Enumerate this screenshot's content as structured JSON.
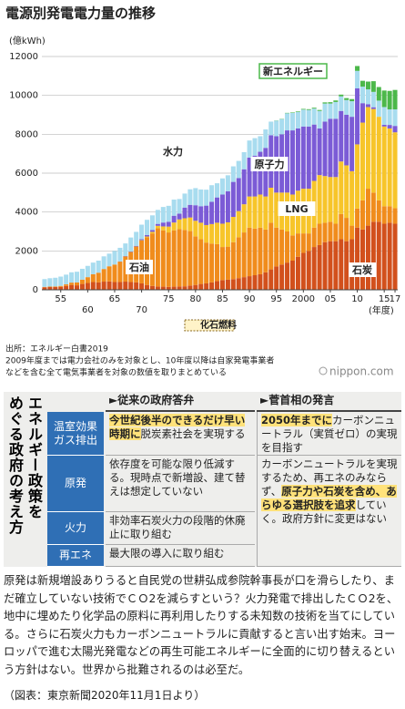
{
  "chart_data": {
    "type": "stacked_bar",
    "title": "電源別発電電力量の推移",
    "y_label": "(億kWh)",
    "x_label": "(年度)",
    "x": [
      1952,
      1953,
      1954,
      1955,
      1956,
      1957,
      1958,
      1959,
      1960,
      1961,
      1962,
      1963,
      1964,
      1965,
      1966,
      1967,
      1968,
      1969,
      1970,
      1971,
      1972,
      1973,
      1974,
      1975,
      1976,
      1977,
      1978,
      1979,
      1980,
      1981,
      1982,
      1983,
      1984,
      1985,
      1986,
      1987,
      1988,
      1989,
      1990,
      1991,
      1992,
      1993,
      1994,
      1995,
      1996,
      1997,
      1998,
      1999,
      2000,
      2001,
      2002,
      2003,
      2004,
      2005,
      2006,
      2007,
      2008,
      2009,
      2010,
      2011,
      2012,
      2013,
      2014,
      2015,
      2016,
      2017
    ],
    "xlim": [
      1951.5,
      2017.5
    ],
    "xticks": [
      {
        "value": 1955,
        "label": "55"
      },
      {
        "value": 1960,
        "label": "60"
      },
      {
        "value": 1965,
        "label": "65"
      },
      {
        "value": 1970,
        "label": "70"
      },
      {
        "value": 1975,
        "label": "75"
      },
      {
        "value": 1980,
        "label": "80"
      },
      {
        "value": 1985,
        "label": "85"
      },
      {
        "value": 1990,
        "label": "90"
      },
      {
        "value": 1995,
        "label": "95"
      },
      2000,
      {
        "value": 2005,
        "label": "05"
      },
      {
        "value": 2010,
        "label": "10"
      },
      {
        "value": 2015,
        "label": "15"
      },
      {
        "value": 2017,
        "label": "17"
      }
    ],
    "ylim": [
      0,
      12000
    ],
    "yticks": [
      0,
      2000,
      4000,
      6000,
      8000,
      10000,
      12000
    ],
    "grid": true,
    "series": [
      {
        "name": "石炭",
        "color": "#d2501c",
        "values": [
          130,
          140,
          140,
          150,
          200,
          250,
          230,
          300,
          350,
          400,
          380,
          420,
          430,
          400,
          400,
          420,
          400,
          380,
          330,
          250,
          200,
          170,
          160,
          150,
          160,
          170,
          180,
          220,
          250,
          300,
          330,
          380,
          450,
          500,
          520,
          550,
          600,
          650,
          700,
          750,
          800,
          900,
          1050,
          1200,
          1300,
          1400,
          1500,
          1700,
          1900,
          2000,
          2200,
          2300,
          2450,
          2500,
          2500,
          2600,
          2500,
          2600,
          3200,
          3100,
          3300,
          3500,
          3500,
          3400,
          3450,
          3400
        ]
      },
      {
        "name": "石油",
        "color": "#f08c1c",
        "values": [
          20,
          25,
          30,
          50,
          80,
          120,
          150,
          220,
          300,
          400,
          500,
          650,
          780,
          900,
          1050,
          1300,
          1550,
          1850,
          2200,
          2450,
          2700,
          3000,
          2900,
          2800,
          2900,
          2950,
          2900,
          2800,
          2500,
          2300,
          2100,
          2000,
          1900,
          1700,
          1700,
          1900,
          2100,
          2300,
          2500,
          2400,
          2400,
          2200,
          2400,
          2000,
          1800,
          1600,
          1300,
          1200,
          1000,
          900,
          1000,
          1100,
          1000,
          1000,
          900,
          1300,
          1200,
          700,
          980,
          1500,
          1900,
          1500,
          1100,
          900,
          850,
          800
        ]
      },
      {
        "name": "LNG",
        "color": "#f7c52a",
        "values": [
          0,
          0,
          0,
          0,
          0,
          0,
          0,
          0,
          0,
          0,
          0,
          0,
          0,
          0,
          0,
          0,
          0,
          0,
          20,
          40,
          80,
          120,
          200,
          300,
          400,
          500,
          600,
          700,
          800,
          850,
          900,
          1000,
          1100,
          1200,
          1250,
          1300,
          1350,
          1450,
          1600,
          1650,
          1700,
          1700,
          1800,
          1800,
          1900,
          2000,
          2100,
          2200,
          2300,
          2300,
          2400,
          2500,
          2400,
          2300,
          2400,
          2700,
          2700,
          2800,
          3300,
          4000,
          4200,
          4300,
          4300,
          4100,
          4000,
          3900
        ]
      },
      {
        "name": "原子力",
        "color": "#7b5bd6",
        "values": [
          0,
          0,
          0,
          0,
          0,
          0,
          0,
          0,
          0,
          0,
          0,
          0,
          0,
          0,
          10,
          15,
          20,
          30,
          50,
          80,
          90,
          100,
          200,
          250,
          350,
          300,
          550,
          650,
          800,
          850,
          1000,
          1150,
          1300,
          1500,
          1600,
          1800,
          1700,
          1800,
          2000,
          2100,
          2200,
          2500,
          2700,
          2900,
          3000,
          3200,
          3300,
          3200,
          3200,
          3200,
          2900,
          2400,
          2800,
          3000,
          3000,
          2600,
          2600,
          2800,
          2880,
          1000,
          150,
          90,
          0,
          90,
          180,
          330
        ]
      },
      {
        "name": "水力",
        "color": "#a8dcef",
        "values": [
          400,
          430,
          450,
          480,
          500,
          530,
          550,
          560,
          580,
          600,
          620,
          650,
          650,
          700,
          700,
          650,
          720,
          720,
          750,
          780,
          760,
          720,
          800,
          820,
          830,
          750,
          720,
          800,
          880,
          860,
          820,
          850,
          730,
          830,
          820,
          800,
          880,
          880,
          880,
          900,
          800,
          950,
          700,
          800,
          780,
          880,
          900,
          850,
          870,
          850,
          820,
          900,
          930,
          780,
          860,
          750,
          760,
          800,
          900,
          850,
          760,
          790,
          830,
          910,
          800,
          850
        ]
      },
      {
        "name": "新エネルギー",
        "color": "#4cb84a",
        "values": [
          0,
          0,
          0,
          0,
          0,
          0,
          0,
          0,
          0,
          0,
          0,
          0,
          0,
          0,
          0,
          0,
          0,
          0,
          0,
          0,
          0,
          0,
          0,
          0,
          0,
          0,
          0,
          0,
          0,
          0,
          0,
          0,
          0,
          0,
          0,
          0,
          0,
          0,
          0,
          0,
          0,
          0,
          0,
          10,
          15,
          20,
          25,
          30,
          35,
          40,
          45,
          50,
          60,
          70,
          80,
          90,
          100,
          110,
          250,
          300,
          400,
          550,
          700,
          850,
          950,
          1000
        ]
      }
    ],
    "fossil_legend": "化石燃料"
  },
  "source": [
    "出所：エネルギー白書2019",
    "2009年度までは電力会社のみを対象とし、10年度以降は自家発電事業者",
    "などを含む全て電気事業者を対象の数値を取りまとめている"
  ],
  "logo": "nippon.com",
  "table": {
    "title": [
      "エネルギー政策を",
      "めぐる政府の考え方"
    ],
    "headers": [
      "►従来の政府答弁",
      "►菅首相の発言"
    ],
    "rows": [
      {
        "label": "温室効果\nガス排出",
        "old": [
          {
            "text": "今世紀後半のできるだけ早い時期に",
            "marker": true
          },
          {
            "text": "脱炭素社会を実現する",
            "marker": false
          }
        ],
        "new": [
          {
            "text": "2050年までに",
            "marker": true
          },
          {
            "text": "カーボンニュートラル（実質ゼロ）の実現を目指す",
            "marker": false
          }
        ]
      },
      {
        "label": "原発",
        "old": [
          {
            "text": "依存度を可能な限り低減する。現時点で新増設、建て替えは想定していない",
            "marker": false
          }
        ],
        "new": [
          {
            "text": "カーボンニュートラルを実現するため、再エネのみならず、",
            "marker": false
          },
          {
            "text": "原子力や石炭を含め、あらゆる選択肢を追求",
            "marker": true
          },
          {
            "text": "していく。政府方針に変更はない",
            "marker": false
          }
        ]
      },
      {
        "label": "火力",
        "old": [
          {
            "text": "非効率石炭火力の段階的休廃止に取り組む",
            "marker": false
          }
        ]
      },
      {
        "label": "再エネ",
        "old": [
          {
            "text": "最大限の導入に取り組む",
            "marker": false
          }
        ]
      }
    ]
  },
  "body": "原発は新規増設ありうると自民党の世耕弘成参院幹事長が口を滑らしたり、まだ確立していない技術でＣＯ2を減らすという？火力発電で排出したＣＯ2を、地中に埋めたり化学品の原料に再利用したりする未知数の技術を当てにしている。さらに石炭火力もカーボンニュートラルに貢献すると言い出す始末。ヨーロッパで進む太陽光発電などの再生可能エネルギーに全面的に切り替えるという方針はない。世界から批難されるのは必至だ。",
  "credit": "（図表：東京新聞2020年11月1日より）"
}
